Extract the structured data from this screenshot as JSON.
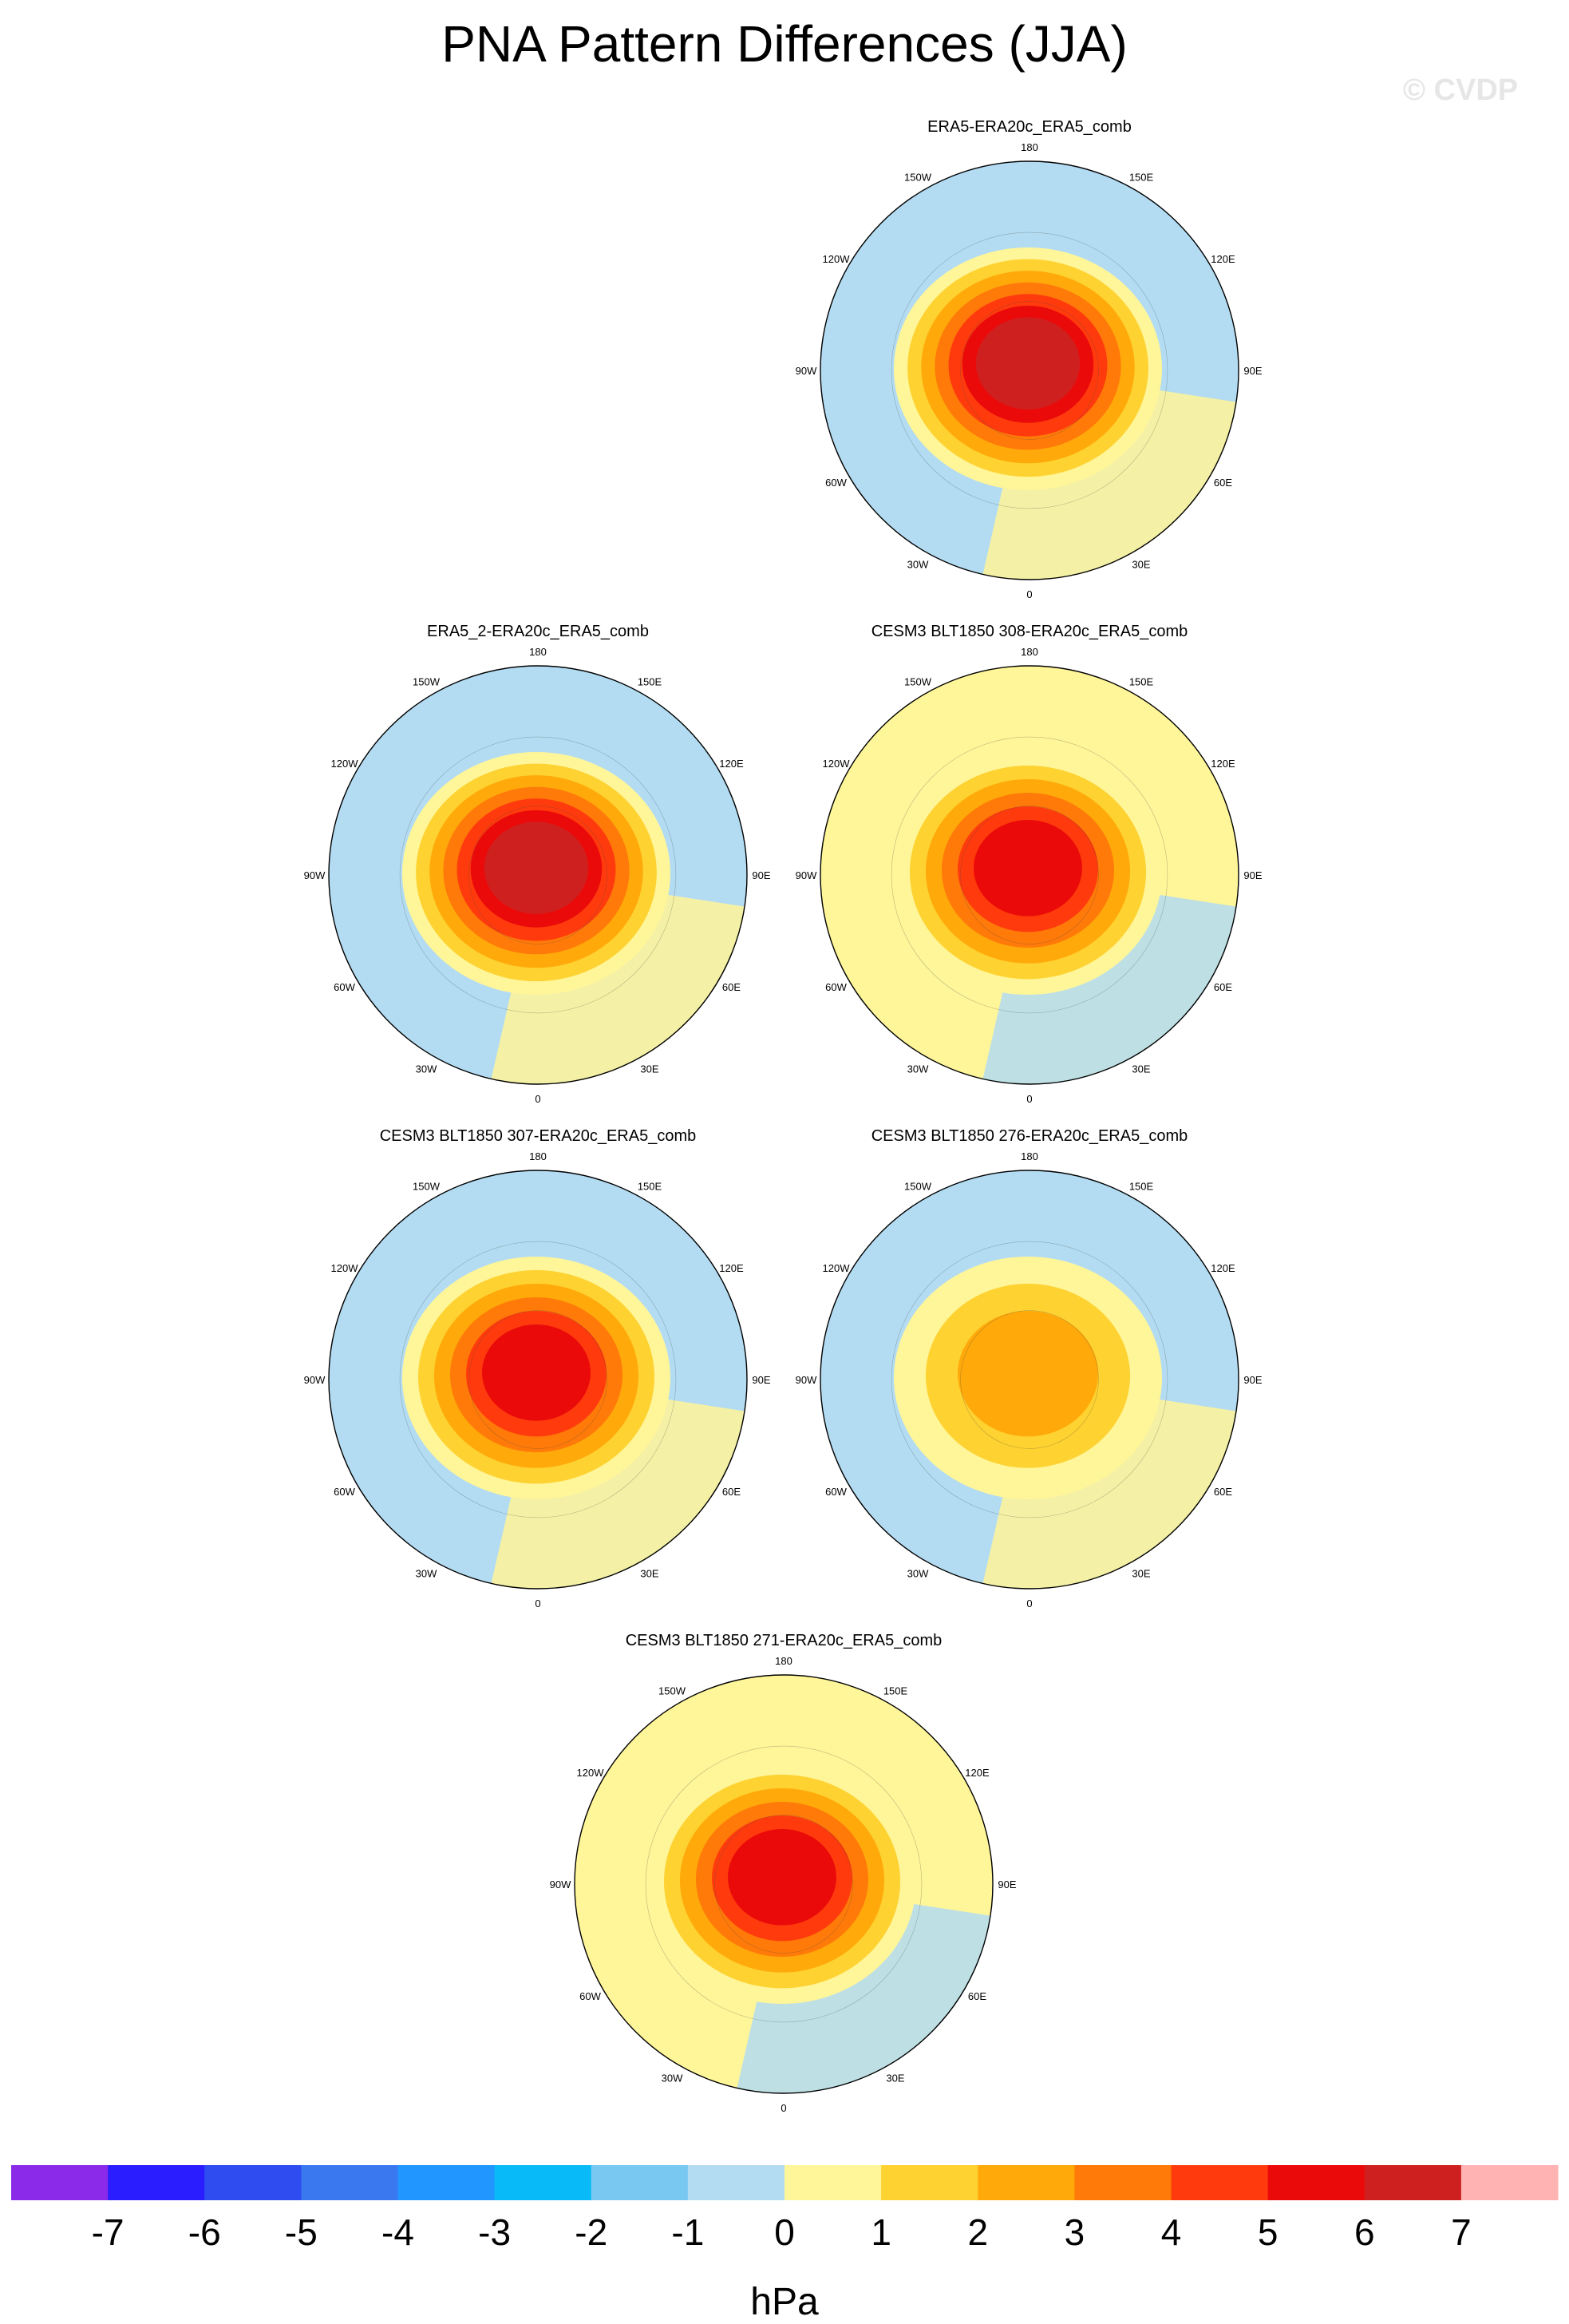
{
  "title": "PNA Pattern Differences (JJA)",
  "watermark": "© CVDP",
  "chart_data": {
    "type": "polar-stereographic contour maps",
    "variable": "PNA pattern difference",
    "season": "JJA",
    "units": "hPa",
    "contour_levels": [
      -7,
      -6,
      -5,
      -4,
      -3,
      -2,
      -1,
      0,
      1,
      2,
      3,
      4,
      5,
      6,
      7
    ],
    "colorbar_colors": [
      "#8b2ae8",
      "#2a1dff",
      "#2e4cf0",
      "#3a78f0",
      "#2196ff",
      "#08bbf8",
      "#78c8f2",
      "#b3dcf2",
      "#fff599",
      "#fed230",
      "#ffa90a",
      "#ff7a09",
      "#ff3b0d",
      "#eb0a0a",
      "#cf2020",
      "#ffb3b3"
    ],
    "longitude_labels": [
      "180",
      "150E",
      "120E",
      "90E",
      "60E",
      "30E",
      "0",
      "30W",
      "60W",
      "90W",
      "120W",
      "150W"
    ],
    "panels": [
      {
        "id": "p1",
        "title": "ERA5-ERA20c_ERA5_comb",
        "max_value": 6,
        "background_value": -0.5
      },
      {
        "id": "p2",
        "title": "ERA5_2-ERA20c_ERA5_comb",
        "max_value": 6,
        "background_value": -0.5
      },
      {
        "id": "p3",
        "title": "CESM3 BLT1850 308-ERA20c_ERA5_comb",
        "max_value": 5,
        "background_value": 0.5
      },
      {
        "id": "p4",
        "title": "CESM3 BLT1850 307-ERA20c_ERA5_comb",
        "max_value": 5,
        "background_value": -0.5
      },
      {
        "id": "p5",
        "title": "CESM3 BLT1850 276-ERA20c_ERA5_comb",
        "max_value": 2,
        "background_value": -0.5
      },
      {
        "id": "p6",
        "title": "CESM3 BLT1850 271-ERA20c_ERA5_comb",
        "max_value": 5,
        "background_value": 0.5
      }
    ]
  }
}
